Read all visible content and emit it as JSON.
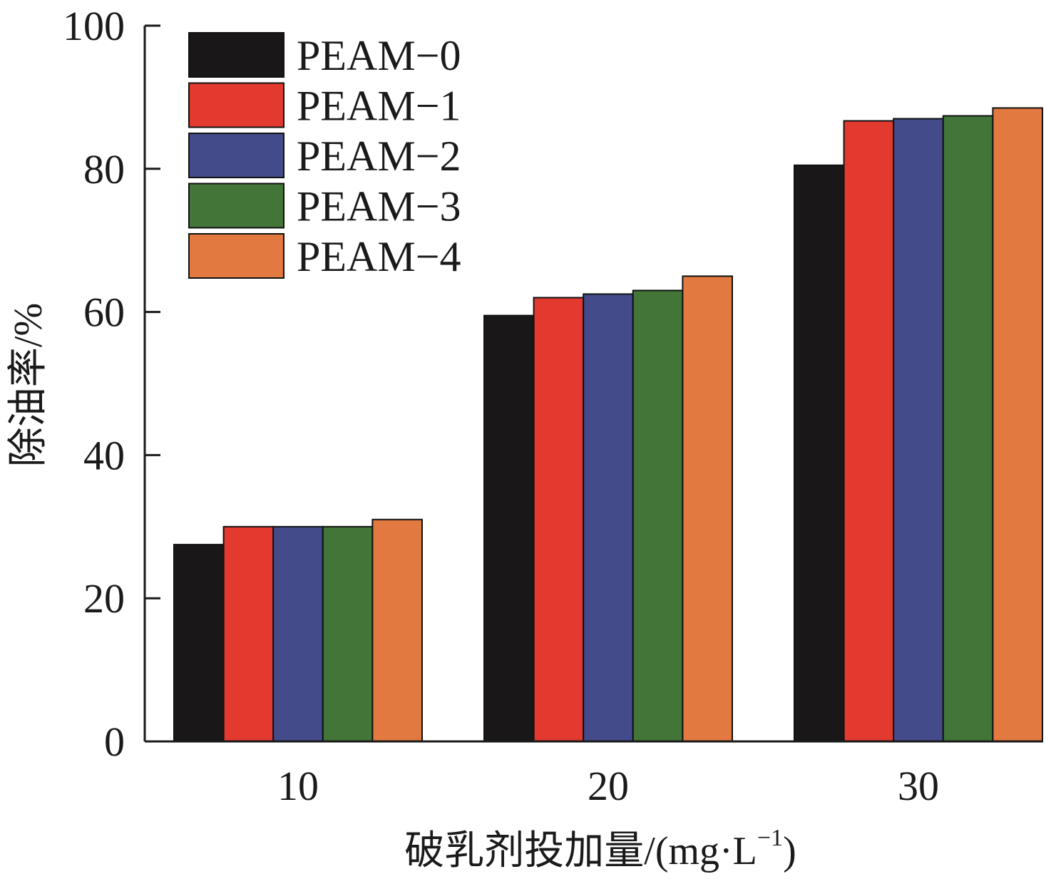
{
  "chart_data": {
    "type": "bar",
    "title": "",
    "xlabel": "破乳剂投加量/(mg·L",
    "xlabel_superscript": "−1",
    "xlabel_suffix": ")",
    "ylabel": "除油率/%",
    "categories": [
      "10",
      "20",
      "30"
    ],
    "ylim": [
      0,
      100
    ],
    "yticks": [
      "0",
      "20",
      "40",
      "60",
      "80",
      "100"
    ],
    "legend_position": "top-left",
    "grid": false,
    "series": [
      {
        "name": "PEAM−0",
        "color": "#1a1718",
        "values": [
          27.5,
          59.5,
          80.5
        ]
      },
      {
        "name": "PEAM−1",
        "color": "#e33a30",
        "values": [
          30.0,
          62.0,
          86.7
        ]
      },
      {
        "name": "PEAM−2",
        "color": "#434b8b",
        "values": [
          30.0,
          62.5,
          87.0
        ]
      },
      {
        "name": "PEAM−3",
        "color": "#437538",
        "values": [
          30.0,
          63.0,
          87.4
        ]
      },
      {
        "name": "PEAM−4",
        "color": "#e17940",
        "values": [
          31.0,
          65.0,
          88.5
        ]
      }
    ]
  }
}
